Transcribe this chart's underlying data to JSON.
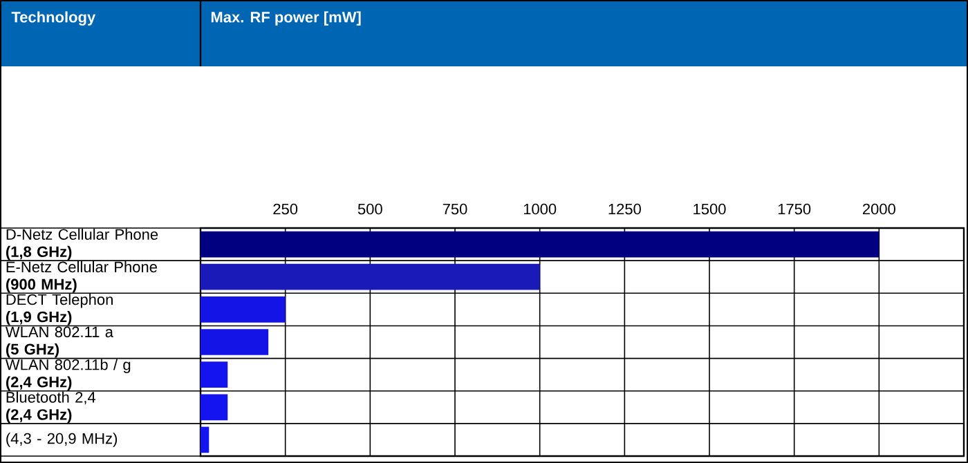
{
  "chart_data": {
    "type": "bar",
    "orientation": "horizontal",
    "annotations": [
      "Technology",
      "Max. RF power [mW]"
    ],
    "categories": [
      "D-Netz Cellular Phone **(1,8 GHz)**",
      "E-Netz Cellular Phone **(900 MHz)**",
      "DECT Telephon **(1,9 GHz)**",
      "WLAN 802.11 a **(5 GHz)**",
      "WLAN 802.11b / g **(2,4 GHz)**",
      "Bluetooth 2,4 **(2,4 GHz)**",
      "(4,3 - 20,9 MHz)"
    ],
    "values": [
      2000,
      1000,
      250,
      200,
      80,
      80,
      25
    ],
    "colors": [
      "#000080",
      "#1a1ab8",
      "#1414e6",
      "#1414e6",
      "#1414f0",
      "#1414f0",
      "#1414f0"
    ],
    "xlim": [
      0,
      2250
    ],
    "xticks": [
      250,
      500,
      750,
      1000,
      1250,
      1500,
      1750,
      2000
    ],
    "grid": "x"
  }
}
